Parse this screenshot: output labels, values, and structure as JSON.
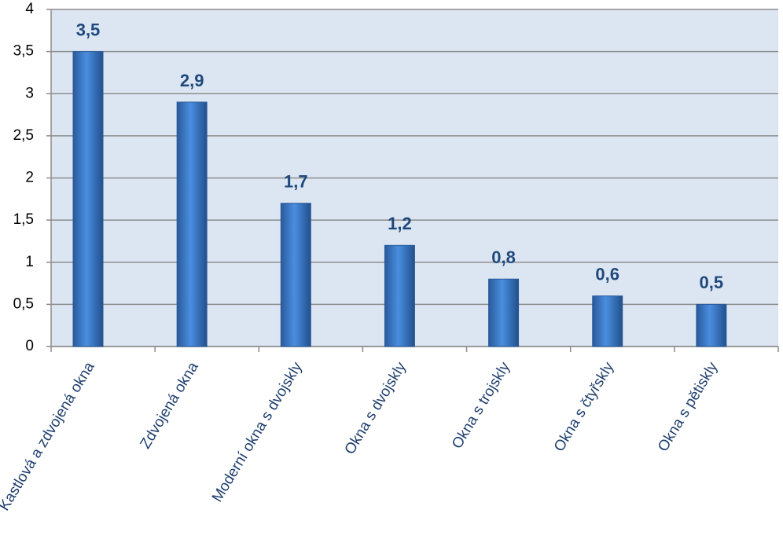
{
  "chart_data": {
    "type": "bar",
    "categories": [
      "Kastlová a zdvojená okna",
      "Zdvojená okna",
      "Moderní okna s dvojskly",
      "Okna s dvojskly",
      "Okna s trojskly",
      "Okna s čtyřskly",
      "Okna s pětiskly"
    ],
    "values": [
      3.5,
      2.9,
      1.7,
      1.2,
      0.8,
      0.6,
      0.5
    ],
    "value_labels": [
      "3,5",
      "2,9",
      "1,7",
      "1,2",
      "0,8",
      "0,6",
      "0,5"
    ],
    "color": "#3a78c9",
    "ylim": [
      0,
      4
    ],
    "yticks": [
      0,
      {
        "value": 0.5,
        "label": "0,5"
      },
      1,
      {
        "value": 1.5,
        "label": "1,5"
      },
      2,
      {
        "value": 2.5,
        "label": "2,5"
      },
      3,
      {
        "value": 3.5,
        "label": "3,5"
      },
      4
    ],
    "grid": true
  }
}
